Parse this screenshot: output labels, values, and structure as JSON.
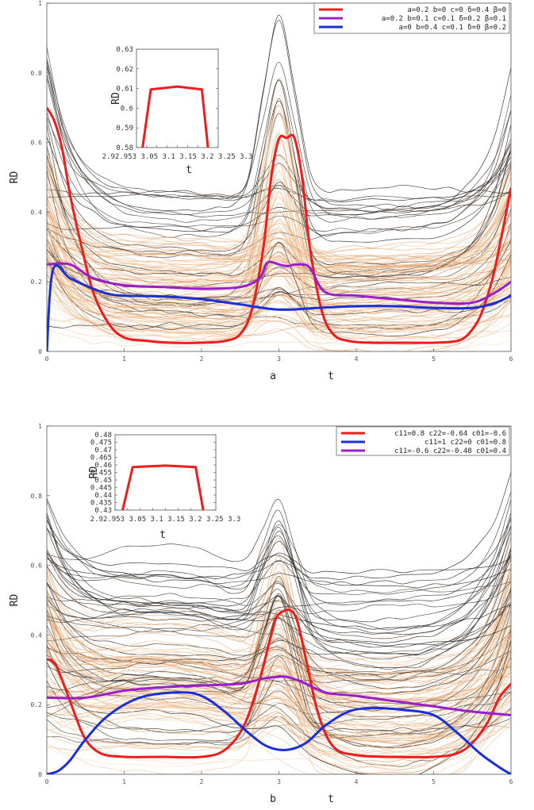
{
  "chart_data": [
    {
      "type": "line",
      "panel_label": "a",
      "xlabel": "t",
      "ylabel": "RD",
      "xlim": [
        0,
        6
      ],
      "ylim": [
        0,
        1
      ],
      "xticks": [
        "0",
        "1",
        "2",
        "3",
        "4",
        "5",
        "6"
      ],
      "yticks": [
        "0",
        "0.2",
        "0.4",
        "0.6",
        "0.8",
        "1"
      ],
      "legend_position": "top-right",
      "background_ensemble": "many thin curves shaded from light orange to black",
      "series": [
        {
          "name": "a=0.2 b=0 c=0 δ=0.4 β=0",
          "color": "#ee1c1c",
          "x": [
            0,
            0.1,
            0.2,
            0.3,
            0.45,
            0.6,
            0.8,
            1.0,
            1.3,
            1.6,
            2.0,
            2.3,
            2.5,
            2.65,
            2.8,
            2.9,
            3.0,
            3.1,
            3.2,
            3.3,
            3.4,
            3.55,
            3.7,
            3.9,
            4.2,
            4.6,
            5.0,
            5.3,
            5.45,
            5.6,
            5.75,
            5.85,
            6.0
          ],
          "y": [
            0.7,
            0.66,
            0.58,
            0.45,
            0.3,
            0.17,
            0.08,
            0.04,
            0.03,
            0.025,
            0.025,
            0.03,
            0.05,
            0.12,
            0.3,
            0.5,
            0.61,
            0.613,
            0.613,
            0.5,
            0.3,
            0.12,
            0.05,
            0.03,
            0.025,
            0.025,
            0.025,
            0.03,
            0.05,
            0.1,
            0.2,
            0.3,
            0.47
          ]
        },
        {
          "name": "a=0.2 b=0.1 c=0.1 δ=0.2 β=0.1",
          "color": "#9b1fc8",
          "x": [
            0,
            0.3,
            0.6,
            1.0,
            1.5,
            2.0,
            2.5,
            2.75,
            2.85,
            3.0,
            3.1,
            3.25,
            3.4,
            3.6,
            4.0,
            4.5,
            5.0,
            5.5,
            5.8,
            6.0
          ],
          "y": [
            0.25,
            0.25,
            0.21,
            0.19,
            0.185,
            0.18,
            0.185,
            0.21,
            0.255,
            0.25,
            0.245,
            0.25,
            0.24,
            0.17,
            0.16,
            0.15,
            0.14,
            0.14,
            0.17,
            0.2
          ]
        },
        {
          "name": "a=0 b=0.4 c=0.1 δ=0 β=0.2",
          "color": "#1a2fd6",
          "x": [
            0,
            0.08,
            0.3,
            0.6,
            0.8,
            1.0,
            1.5,
            2.0,
            2.5,
            3.0,
            3.5,
            4.0,
            4.5,
            5.0,
            5.5,
            5.8,
            6.0
          ],
          "y": [
            0.0,
            0.235,
            0.21,
            0.18,
            0.165,
            0.16,
            0.158,
            0.15,
            0.135,
            0.12,
            0.125,
            0.13,
            0.13,
            0.125,
            0.125,
            0.14,
            0.16
          ]
        }
      ],
      "inset": {
        "xlabel": "t",
        "ylabel": "RD",
        "ylim": [
          0.58,
          0.63
        ],
        "yticks": [
          "0.58",
          "0.59",
          "0.6",
          "0.61",
          "0.62",
          "0.63"
        ],
        "xticks_text": "2.92.953 3.05 3.1 3.15 3.2 3.25 3.3",
        "x": [
          2.93,
          2.97,
          3.1,
          3.22,
          3.25
        ],
        "y": [
          0.58,
          0.6095,
          0.611,
          0.6095,
          0.58
        ]
      }
    },
    {
      "type": "line",
      "panel_label": "b",
      "xlabel": "t",
      "ylabel": "RD",
      "xlim": [
        0,
        6
      ],
      "ylim": [
        0,
        1
      ],
      "xticks": [
        "0",
        "1",
        "2",
        "3",
        "4",
        "5",
        "6"
      ],
      "yticks": [
        "0",
        "0.2",
        "0.4",
        "0.6",
        "0.8",
        "1"
      ],
      "legend_position": "top-right",
      "background_ensemble": "many thin curves shaded from light orange to black",
      "series": [
        {
          "name": "c11=0.8 c22=-0.64 c01=-0.6",
          "color": "#ee1c1c",
          "x": [
            0,
            0.1,
            0.2,
            0.35,
            0.5,
            0.7,
            1.0,
            1.5,
            2.0,
            2.3,
            2.55,
            2.75,
            2.9,
            3.0,
            3.2,
            3.35,
            3.5,
            3.7,
            4.0,
            4.5,
            5.0,
            5.3,
            5.5,
            5.7,
            5.85,
            6.0
          ],
          "y": [
            0.33,
            0.32,
            0.27,
            0.18,
            0.1,
            0.06,
            0.05,
            0.05,
            0.05,
            0.07,
            0.14,
            0.27,
            0.4,
            0.46,
            0.46,
            0.33,
            0.18,
            0.08,
            0.055,
            0.05,
            0.05,
            0.06,
            0.09,
            0.15,
            0.22,
            0.26
          ]
        },
        {
          "name": "c11=1 c22=0 c01=0.8",
          "color": "#1a2fd6",
          "x": [
            0,
            0.15,
            0.3,
            0.5,
            0.8,
            1.2,
            1.7,
            2.0,
            2.3,
            2.6,
            2.85,
            3.1,
            3.35,
            3.6,
            3.9,
            4.2,
            4.6,
            5.0,
            5.3,
            5.6,
            5.85,
            6.0
          ],
          "y": [
            0.0,
            0.01,
            0.04,
            0.1,
            0.17,
            0.22,
            0.235,
            0.225,
            0.18,
            0.12,
            0.08,
            0.07,
            0.09,
            0.14,
            0.18,
            0.19,
            0.185,
            0.17,
            0.12,
            0.06,
            0.02,
            0.0
          ]
        },
        {
          "name": "c11=-0.6 c22=-0.48 c01=0.4",
          "color": "#9b1fc8",
          "x": [
            0,
            0.5,
            1.0,
            1.5,
            2.0,
            2.5,
            2.8,
            3.0,
            3.1,
            3.3,
            3.6,
            4.0,
            4.5,
            5.0,
            5.5,
            6.0
          ],
          "y": [
            0.22,
            0.22,
            0.24,
            0.25,
            0.255,
            0.26,
            0.275,
            0.28,
            0.28,
            0.265,
            0.235,
            0.225,
            0.21,
            0.195,
            0.18,
            0.17
          ]
        }
      ],
      "inset": {
        "xlabel": "t",
        "ylabel": "RD",
        "ylim": [
          0.43,
          0.48
        ],
        "yticks": [
          "0.43",
          "0.435",
          "0.44",
          "0.445",
          "0.45",
          "0.455",
          "0.46",
          "0.465",
          "0.47",
          "0.475",
          "0.48"
        ],
        "xticks_text": "2.92.953 3.05 3.1 3.15 3.2 3.25 3.3",
        "x": [
          2.93,
          2.97,
          3.1,
          3.22,
          3.25
        ],
        "y": [
          0.43,
          0.4585,
          0.4595,
          0.4585,
          0.43
        ]
      }
    }
  ]
}
